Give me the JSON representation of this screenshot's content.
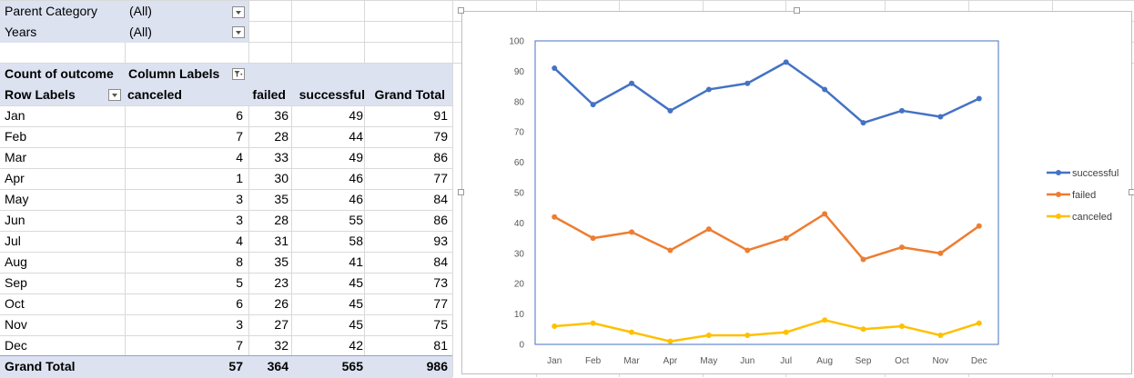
{
  "filters": [
    {
      "label": "Parent Category",
      "value": "(All)"
    },
    {
      "label": "Years",
      "value": "(All)"
    }
  ],
  "pivot": {
    "value_field": "Count of outcome",
    "column_labels": "Column Labels",
    "row_labels": "Row Labels",
    "columns": [
      "canceled",
      "failed",
      "successful",
      "Grand Total"
    ],
    "rows": [
      {
        "label": "Jan",
        "values": [
          "6",
          "36",
          "49",
          "91"
        ]
      },
      {
        "label": "Feb",
        "values": [
          "7",
          "28",
          "44",
          "79"
        ]
      },
      {
        "label": "Mar",
        "values": [
          "4",
          "33",
          "49",
          "86"
        ]
      },
      {
        "label": "Apr",
        "values": [
          "1",
          "30",
          "46",
          "77"
        ]
      },
      {
        "label": "May",
        "values": [
          "3",
          "35",
          "46",
          "84"
        ]
      },
      {
        "label": "Jun",
        "values": [
          "3",
          "28",
          "55",
          "86"
        ]
      },
      {
        "label": "Jul",
        "values": [
          "4",
          "31",
          "58",
          "93"
        ]
      },
      {
        "label": "Aug",
        "values": [
          "8",
          "35",
          "41",
          "84"
        ]
      },
      {
        "label": "Sep",
        "values": [
          "5",
          "23",
          "45",
          "73"
        ]
      },
      {
        "label": "Oct",
        "values": [
          "6",
          "26",
          "45",
          "77"
        ]
      },
      {
        "label": "Nov",
        "values": [
          "3",
          "27",
          "45",
          "75"
        ]
      },
      {
        "label": "Dec",
        "values": [
          "7",
          "32",
          "42",
          "81"
        ]
      }
    ],
    "grand_total": {
      "label": "Grand Total",
      "values": [
        "57",
        "364",
        "565",
        "986"
      ]
    }
  },
  "chart_data": {
    "type": "line",
    "categories": [
      "Jan",
      "Feb",
      "Mar",
      "Apr",
      "May",
      "Jun",
      "Jul",
      "Aug",
      "Sep",
      "Oct",
      "Nov",
      "Dec"
    ],
    "series": [
      {
        "name": "successful",
        "color": "#4472c4",
        "values": [
          91,
          79,
          86,
          77,
          84,
          86,
          93,
          84,
          73,
          77,
          75,
          81
        ]
      },
      {
        "name": "failed",
        "color": "#ed7d31",
        "values": [
          42,
          35,
          37,
          31,
          38,
          31,
          35,
          43,
          28,
          32,
          30,
          39
        ]
      },
      {
        "name": "canceled",
        "color": "#ffc000",
        "values": [
          6,
          7,
          4,
          1,
          3,
          3,
          4,
          8,
          5,
          6,
          3,
          7
        ]
      }
    ],
    "ylim": [
      0,
      100
    ],
    "yticks": [
      "0",
      "10",
      "20",
      "30",
      "40",
      "50",
      "60",
      "70",
      "80",
      "90",
      "100"
    ],
    "grid": false,
    "legend_position": "right"
  }
}
